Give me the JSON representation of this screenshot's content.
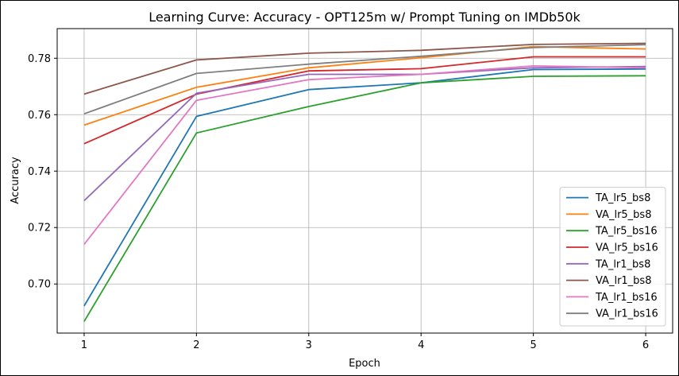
{
  "chart_data": {
    "type": "line",
    "title": "Learning Curve: Accuracy - OPT125m w/ Prompt Tuning on IMDb50k",
    "xlabel": "Epoch",
    "ylabel": "Accuracy",
    "x": [
      1,
      2,
      3,
      4,
      5,
      6
    ],
    "xlim": [
      0.76,
      6.24
    ],
    "ylim": [
      0.6826,
      0.7905
    ],
    "xticks": [
      "1",
      "2",
      "3",
      "4",
      "5",
      "6"
    ],
    "yticks": [
      "0.70",
      "0.72",
      "0.74",
      "0.76",
      "0.78"
    ],
    "ytick_values": [
      0.7,
      0.72,
      0.74,
      0.76,
      0.78
    ],
    "grid": true,
    "legend_position": "lower-right",
    "series": [
      {
        "name": "TA_lr5_bs8",
        "color": "#1f77b4",
        "values": [
          0.6922,
          0.7594,
          0.7689,
          0.7713,
          0.776,
          0.7762
        ]
      },
      {
        "name": "VA_lr5_bs8",
        "color": "#ff7f0e",
        "values": [
          0.7563,
          0.7697,
          0.7766,
          0.7802,
          0.7841,
          0.7833
        ]
      },
      {
        "name": "TA_lr5_bs16",
        "color": "#2ca02c",
        "values": [
          0.6867,
          0.7535,
          0.7629,
          0.7713,
          0.7736,
          0.7738
        ]
      },
      {
        "name": "VA_lr5_bs16",
        "color": "#d62728",
        "values": [
          0.7497,
          0.7673,
          0.7755,
          0.7763,
          0.7805,
          0.7805
        ]
      },
      {
        "name": "TA_lr1_bs8",
        "color": "#9467bd",
        "values": [
          0.7295,
          0.7676,
          0.7743,
          0.7743,
          0.7766,
          0.7771
        ]
      },
      {
        "name": "VA_lr1_bs8",
        "color": "#8c564b",
        "values": [
          0.7673,
          0.7794,
          0.7818,
          0.7828,
          0.7849,
          0.7853
        ]
      },
      {
        "name": "TA_lr1_bs16",
        "color": "#e377c2",
        "values": [
          0.714,
          0.7651,
          0.7724,
          0.7743,
          0.7773,
          0.7766
        ]
      },
      {
        "name": "VA_lr1_bs16",
        "color": "#7f7f7f",
        "values": [
          0.7603,
          0.7746,
          0.7779,
          0.7807,
          0.7838,
          0.7848
        ]
      }
    ]
  }
}
